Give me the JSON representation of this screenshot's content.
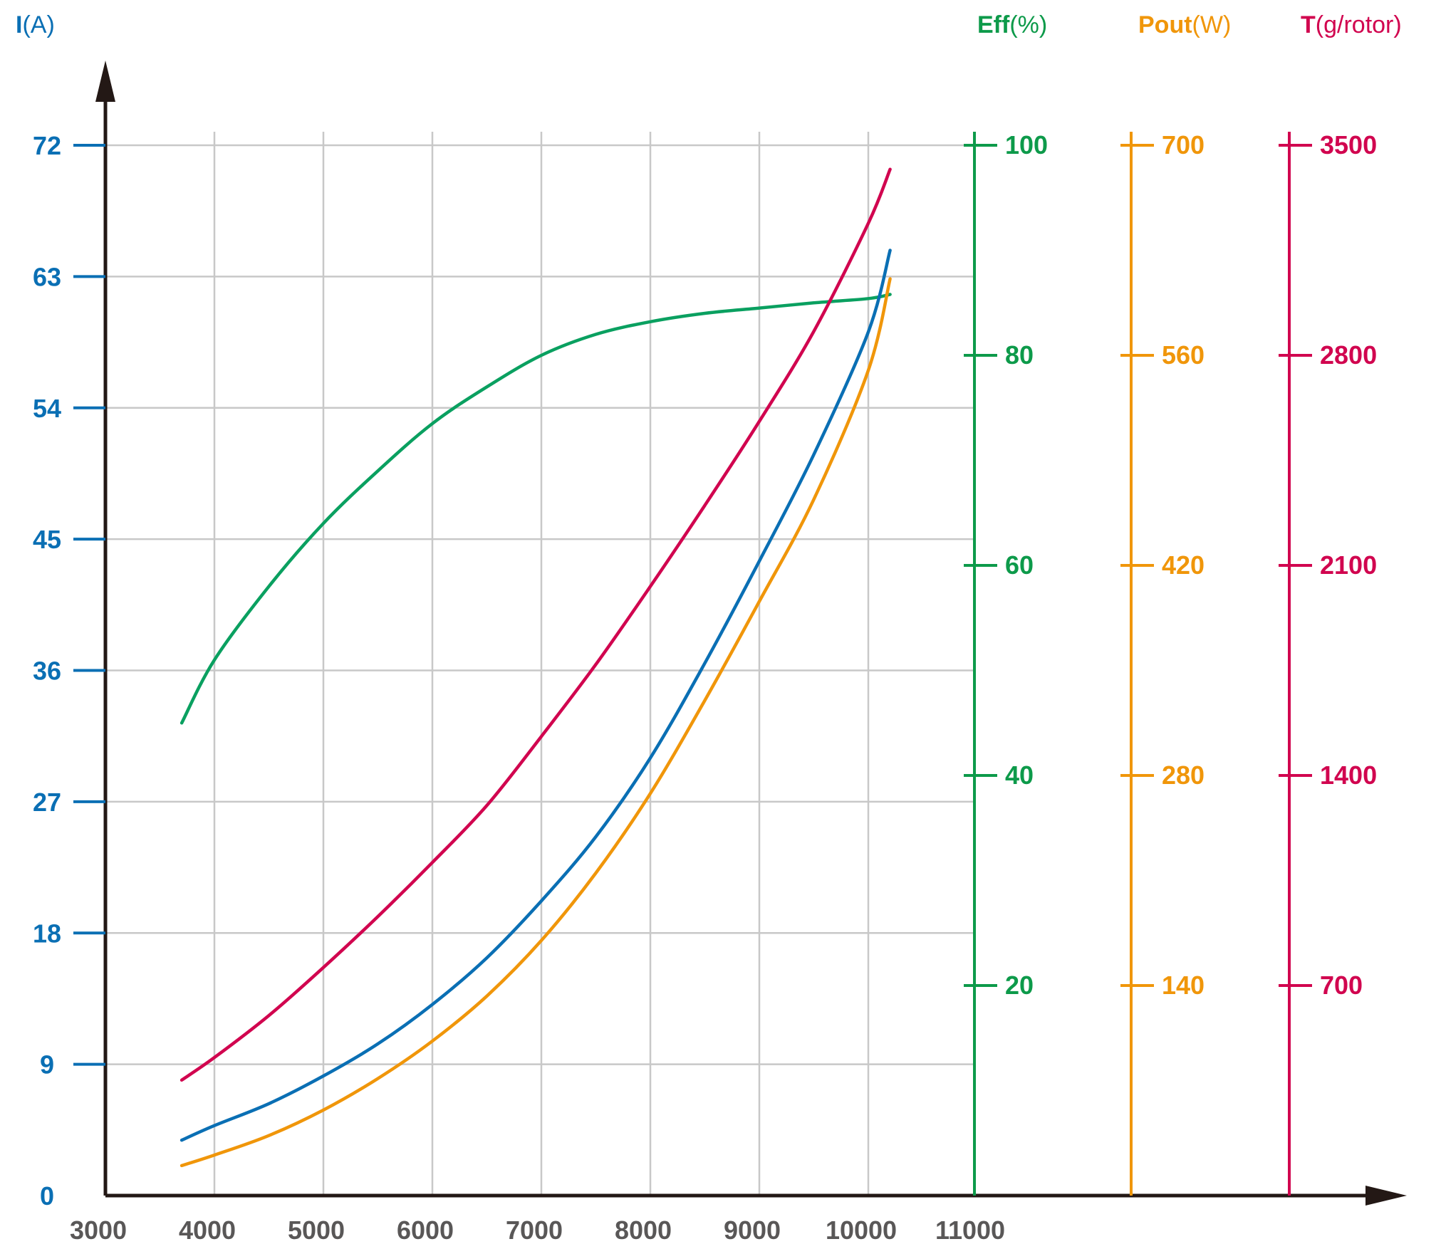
{
  "chart_data": {
    "type": "line",
    "x_ticks": [
      3000,
      4000,
      5000,
      6000,
      7000,
      8000,
      9000,
      10000,
      11000
    ],
    "xlim": [
      3000,
      12500
    ],
    "axes": [
      {
        "id": "current",
        "title_bold": "I",
        "title_unit": "(A)",
        "color": "#0a6fb4",
        "ticks": [
          0,
          9,
          18,
          27,
          36,
          45,
          54,
          63,
          72
        ],
        "ylim": [
          0,
          72
        ]
      },
      {
        "id": "efficiency",
        "title_bold": "Eff",
        "title_unit": "(%)",
        "color": "#0d9a4a",
        "ticks": [
          20,
          40,
          60,
          80,
          100
        ],
        "ylim": [
          0,
          100
        ]
      },
      {
        "id": "power",
        "title_bold": "Pout",
        "title_unit": "(W)",
        "color": "#f0960a",
        "ticks": [
          140,
          280,
          420,
          560,
          700
        ],
        "ylim": [
          0,
          700
        ]
      },
      {
        "id": "thrust",
        "title_bold": "T",
        "title_unit": "(g/rotor)",
        "color": "#d1054f",
        "ticks": [
          700,
          1400,
          2100,
          2800,
          3500
        ],
        "ylim": [
          0,
          3500
        ]
      }
    ],
    "series": [
      {
        "axis": "efficiency",
        "color": "#0aa060",
        "points": [
          [
            3700,
            45
          ],
          [
            4000,
            51
          ],
          [
            4500,
            58
          ],
          [
            5000,
            64
          ],
          [
            5500,
            69
          ],
          [
            6000,
            73.5
          ],
          [
            6500,
            77
          ],
          [
            7000,
            80
          ],
          [
            7500,
            82
          ],
          [
            8000,
            83.2
          ],
          [
            8500,
            84
          ],
          [
            9000,
            84.5
          ],
          [
            9500,
            85
          ],
          [
            10000,
            85.4
          ],
          [
            10200,
            85.8
          ]
        ]
      },
      {
        "axis": "thrust",
        "color": "#d1054f",
        "points": [
          [
            3700,
            385
          ],
          [
            4000,
            460
          ],
          [
            4500,
            600
          ],
          [
            5000,
            760
          ],
          [
            5500,
            930
          ],
          [
            6000,
            1110
          ],
          [
            6500,
            1300
          ],
          [
            7000,
            1530
          ],
          [
            7500,
            1770
          ],
          [
            8000,
            2030
          ],
          [
            8500,
            2300
          ],
          [
            9000,
            2580
          ],
          [
            9500,
            2880
          ],
          [
            10000,
            3240
          ],
          [
            10200,
            3420
          ]
        ]
      },
      {
        "axis": "current",
        "color": "#0a6fb4",
        "points": [
          [
            3700,
            3.8
          ],
          [
            4000,
            4.8
          ],
          [
            4500,
            6.3
          ],
          [
            5000,
            8.2
          ],
          [
            5500,
            10.4
          ],
          [
            6000,
            13.1
          ],
          [
            6500,
            16.3
          ],
          [
            7000,
            20.2
          ],
          [
            7500,
            24.6
          ],
          [
            8000,
            30
          ],
          [
            8500,
            36.5
          ],
          [
            9000,
            43.5
          ],
          [
            9500,
            50.8
          ],
          [
            10000,
            59.2
          ],
          [
            10200,
            64.8
          ]
        ]
      },
      {
        "axis": "power",
        "color": "#f0960a",
        "points": [
          [
            3700,
            20
          ],
          [
            4000,
            27
          ],
          [
            4500,
            40
          ],
          [
            5000,
            57
          ],
          [
            5500,
            78
          ],
          [
            6000,
            103
          ],
          [
            6500,
            133
          ],
          [
            7000,
            170
          ],
          [
            7500,
            215
          ],
          [
            8000,
            268
          ],
          [
            8500,
            330
          ],
          [
            9000,
            396
          ],
          [
            9500,
            464
          ],
          [
            10000,
            550
          ],
          [
            10200,
            611
          ]
        ]
      }
    ]
  }
}
